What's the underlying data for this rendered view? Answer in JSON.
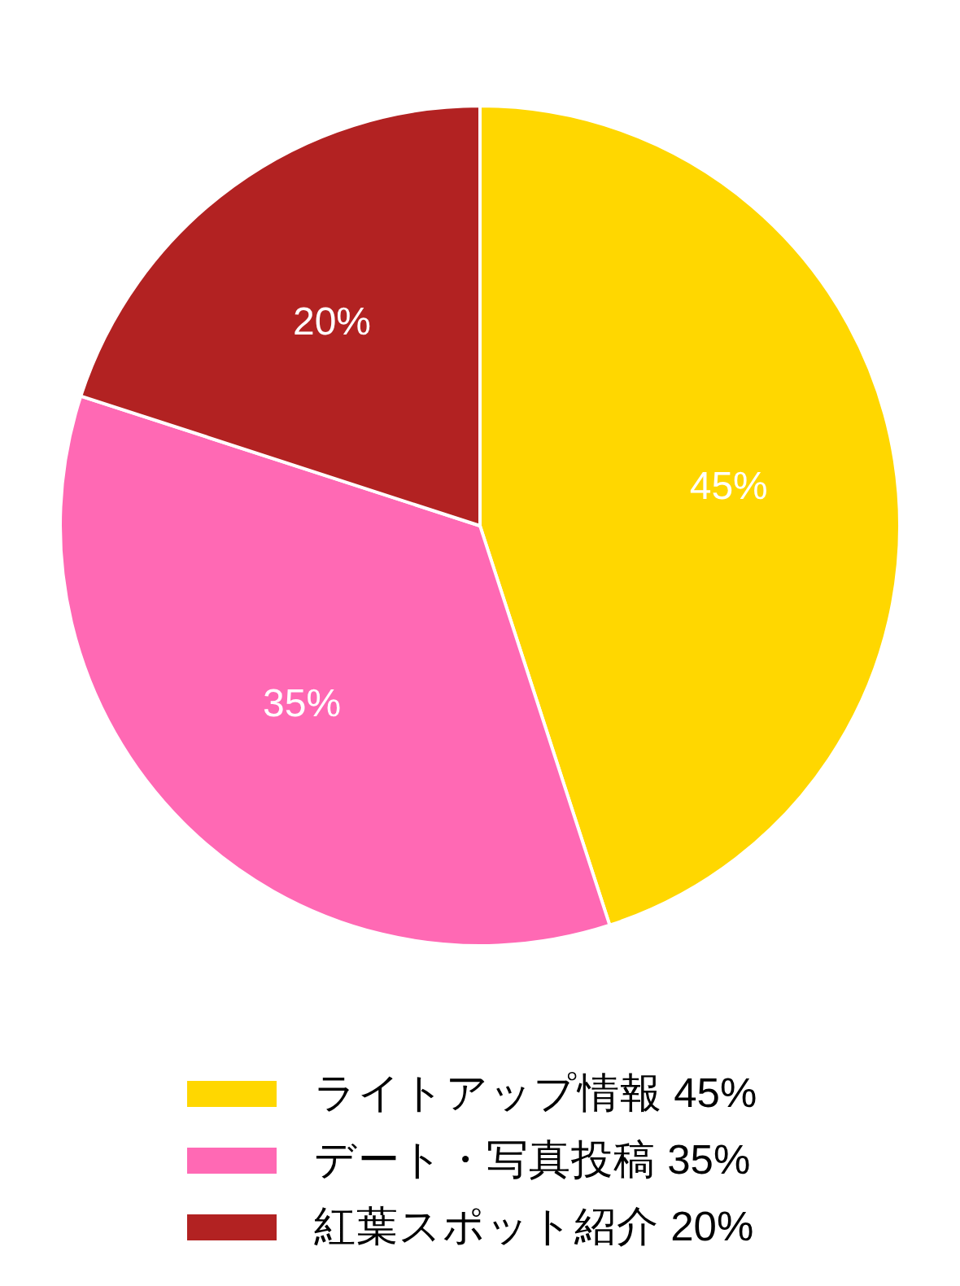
{
  "chart_data": {
    "type": "pie",
    "categories": [
      "ライトアップ情報 45%",
      "デート・写真投稿 35%",
      "紅葉スポット紹介 20%"
    ],
    "values": [
      45,
      35,
      20
    ],
    "colors": [
      "#ffd700",
      "#ff69b4",
      "#b22222"
    ],
    "value_labels": [
      "45%",
      "35%",
      "20%"
    ],
    "legend": "bottom"
  }
}
